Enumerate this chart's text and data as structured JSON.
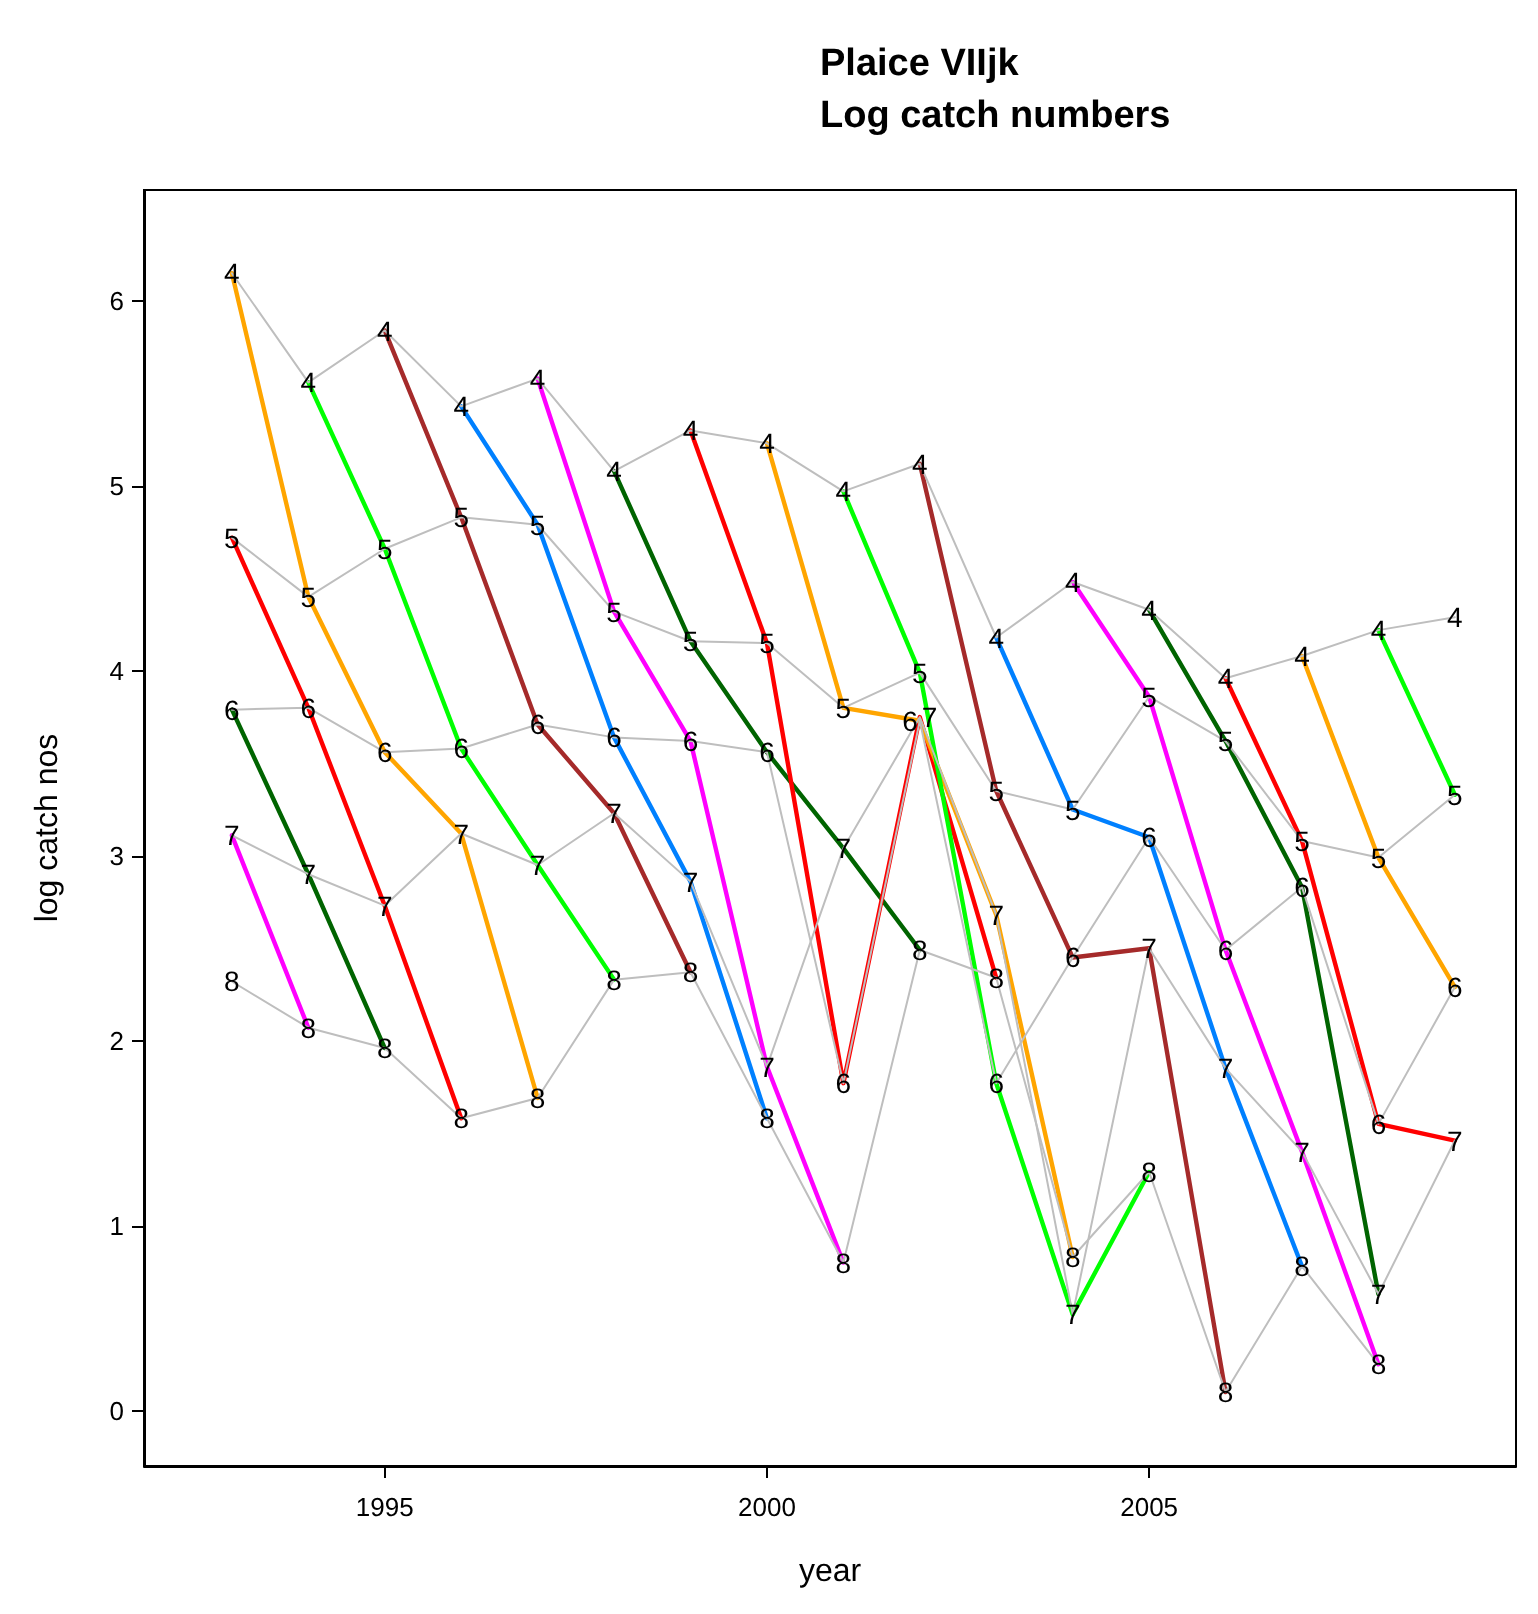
{
  "chart_data": {
    "type": "line",
    "title": "Plaice VIIjk\nLog catch numbers",
    "xlabel": "year",
    "ylabel": "log catch nos",
    "x": [
      1993,
      1994,
      1995,
      1996,
      1997,
      1998,
      1999,
      2000,
      2001,
      2002,
      2003,
      2004,
      2005,
      2006,
      2007,
      2008,
      2009
    ],
    "xlim": [
      1991.85,
      2009.8
    ],
    "xticks": [
      1995,
      2000,
      2005
    ],
    "ylim": [
      -0.3,
      6.6
    ],
    "yticks": [
      0,
      1,
      2,
      3,
      4,
      5,
      6
    ],
    "grid": false,
    "legend": false,
    "marker": "none",
    "line_style": "solid",
    "series": [
      {
        "name": "4",
        "color": "#bebebe",
        "values": [
          6.15,
          5.56,
          5.84,
          5.43,
          5.58,
          5.08,
          5.3,
          5.23,
          4.97,
          5.12,
          4.18,
          4.48,
          4.33,
          3.96,
          4.08,
          4.22,
          4.29
        ]
      },
      {
        "name": "5",
        "color": "#bebebe",
        "values": [
          4.72,
          4.4,
          4.66,
          4.83,
          4.79,
          4.32,
          4.16,
          4.15,
          3.8,
          3.99,
          3.35,
          3.25,
          3.86,
          3.62,
          3.08,
          2.99,
          3.33
        ]
      },
      {
        "name": "6",
        "color": "#bebebe",
        "values": [
          3.79,
          3.8,
          3.56,
          3.58,
          3.71,
          3.64,
          3.62,
          3.56,
          1.77,
          3.73,
          1.77,
          2.45,
          3.1,
          2.49,
          2.83,
          1.55,
          2.29
        ]
      },
      {
        "name": "7",
        "color": "#bebebe",
        "values": [
          3.11,
          2.9,
          2.73,
          3.12,
          2.95,
          3.23,
          2.86,
          1.86,
          3.04,
          3.75,
          2.68,
          0.52,
          2.5,
          1.85,
          1.4,
          0.63,
          1.46
        ]
      },
      {
        "name": "8",
        "color": "#bebebe",
        "values": [
          2.32,
          2.07,
          1.96,
          1.58,
          1.69,
          2.33,
          2.37,
          1.58,
          0.8,
          2.49,
          2.34,
          0.83,
          1.29,
          0.1,
          0.78,
          0.25,
          null
        ]
      },
      {
        "color": "#ff00ff",
        "x": [
          1993,
          1994
        ],
        "values": [
          3.11,
          2.07
        ]
      },
      {
        "color": "#006400",
        "x": [
          1993,
          1994,
          1995
        ],
        "values": [
          3.79,
          2.9,
          1.96
        ]
      },
      {
        "color": "#ff0000",
        "x": [
          1993,
          1994,
          1995,
          1996
        ],
        "values": [
          4.72,
          3.8,
          2.73,
          1.58
        ]
      },
      {
        "color": "#ffa500",
        "x": [
          1993,
          1994,
          1995,
          1996,
          1997
        ],
        "values": [
          6.15,
          4.4,
          3.56,
          3.12,
          1.69
        ]
      },
      {
        "color": "#00ff00",
        "x": [
          1994,
          1995,
          1996,
          1997,
          1998
        ],
        "values": [
          5.56,
          4.66,
          3.58,
          2.95,
          2.33
        ]
      },
      {
        "color": "#a52a2a",
        "x": [
          1995,
          1996,
          1997,
          1998,
          1999
        ],
        "values": [
          5.84,
          4.83,
          3.71,
          3.23,
          2.37
        ]
      },
      {
        "color": "#0080ff",
        "x": [
          1996,
          1997,
          1998,
          1999,
          2000
        ],
        "values": [
          5.43,
          4.79,
          3.64,
          2.86,
          1.58
        ]
      },
      {
        "color": "#ff00ff",
        "x": [
          1997,
          1998,
          1999,
          2000,
          2001
        ],
        "values": [
          5.58,
          4.32,
          3.62,
          1.86,
          0.8
        ]
      },
      {
        "color": "#006400",
        "x": [
          1998,
          1999,
          2000,
          2001,
          2002
        ],
        "values": [
          5.08,
          4.16,
          3.56,
          3.04,
          2.49
        ]
      },
      {
        "color": "#ff0000",
        "x": [
          1999,
          2000,
          2001,
          2002,
          2003
        ],
        "values": [
          5.3,
          4.15,
          1.77,
          3.75,
          2.34
        ]
      },
      {
        "color": "#ffa500",
        "x": [
          2000,
          2001,
          2002,
          2003,
          2004
        ],
        "values": [
          5.23,
          3.8,
          3.73,
          2.68,
          0.83
        ]
      },
      {
        "color": "#00ff00",
        "x": [
          2001,
          2002,
          2003,
          2004,
          2005
        ],
        "values": [
          4.97,
          3.99,
          1.77,
          0.52,
          1.29
        ]
      },
      {
        "color": "#a52a2a",
        "x": [
          2002,
          2003,
          2004,
          2005,
          2006
        ],
        "values": [
          5.12,
          3.35,
          2.45,
          2.5,
          0.1
        ]
      },
      {
        "color": "#0080ff",
        "x": [
          2003,
          2004,
          2005,
          2006,
          2007
        ],
        "values": [
          4.18,
          3.25,
          3.1,
          1.85,
          0.78
        ]
      },
      {
        "color": "#ff00ff",
        "x": [
          2004,
          2005,
          2006,
          2007,
          2008
        ],
        "values": [
          4.48,
          3.86,
          2.49,
          1.4,
          0.25
        ]
      },
      {
        "color": "#006400",
        "x": [
          2005,
          2006,
          2007,
          2008
        ],
        "values": [
          4.33,
          3.62,
          2.83,
          0.63
        ]
      },
      {
        "color": "#ff0000",
        "x": [
          2006,
          2007,
          2008,
          2009
        ],
        "values": [
          3.96,
          3.08,
          1.55,
          1.46
        ]
      },
      {
        "color": "#ffa500",
        "x": [
          2007,
          2008,
          2009
        ],
        "values": [
          4.08,
          2.99,
          2.29
        ]
      },
      {
        "color": "#00ff00",
        "x": [
          2008,
          2009
        ],
        "values": [
          4.22,
          3.33
        ]
      }
    ]
  }
}
